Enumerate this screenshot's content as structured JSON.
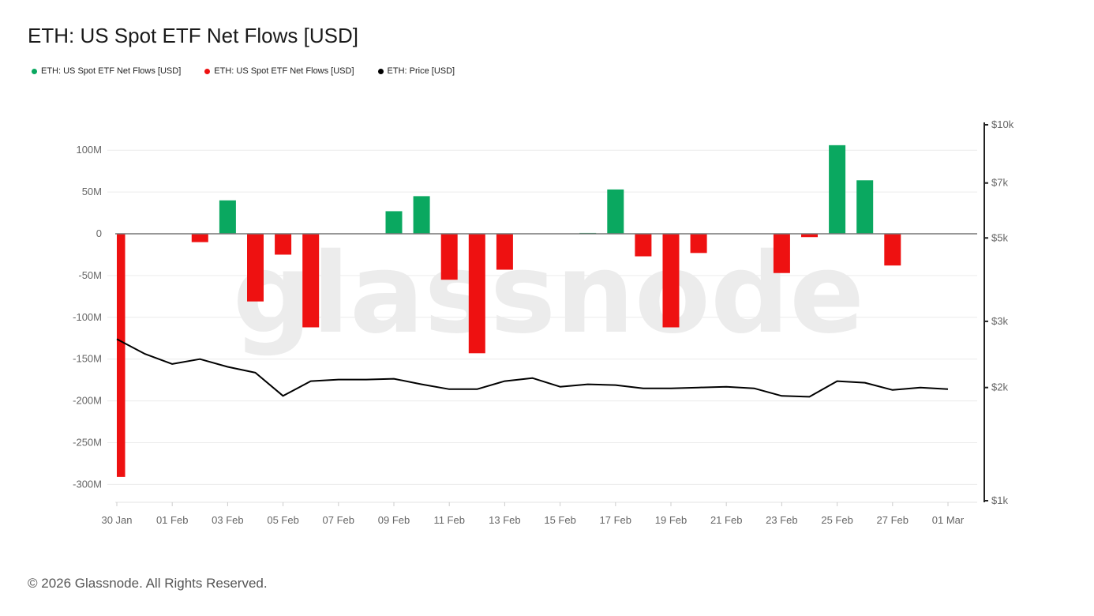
{
  "title": "ETH: US Spot ETF Net Flows [USD]",
  "legend": [
    {
      "label": "ETH: US Spot ETF Net Flows [USD]",
      "color": "#0aa860"
    },
    {
      "label": "ETH: US Spot ETF Net Flows [USD]",
      "color": "#ee1111"
    },
    {
      "label": "ETH: Price [USD]",
      "color": "#000000"
    }
  ],
  "watermark": "glassnode",
  "footer": "© 2026 Glassnode. All Rights Reserved.",
  "chart_data": {
    "type": "bar",
    "x_tick_labels": [
      "30 Jan",
      "01 Feb",
      "03 Feb",
      "05 Feb",
      "07 Feb",
      "09 Feb",
      "11 Feb",
      "13 Feb",
      "15 Feb",
      "17 Feb",
      "19 Feb",
      "21 Feb",
      "23 Feb",
      "25 Feb",
      "27 Feb",
      "01 Mar"
    ],
    "y_left_tick_labels": [
      "100M",
      "50M",
      "0",
      "-50M",
      "-100M",
      "-150M",
      "-200M",
      "-250M",
      "-300M"
    ],
    "y_left_ticks": [
      100,
      50,
      0,
      -50,
      -100,
      -150,
      -200,
      -250,
      -300
    ],
    "y_right_tick_labels": [
      "$10k",
      "$7k",
      "$5k",
      "$3k",
      "$2k",
      "$1k"
    ],
    "y_right_ticks": [
      10000,
      7000,
      5000,
      3000,
      2000,
      1000
    ],
    "y_right_scale": "log",
    "grid": true,
    "positive_color": "#0aa860",
    "negative_color": "#ee1111",
    "price_color": "#000000",
    "x": [
      "30 Jan",
      "31 Jan",
      "01 Feb",
      "02 Feb",
      "03 Feb",
      "04 Feb",
      "05 Feb",
      "06 Feb",
      "07 Feb",
      "08 Feb",
      "09 Feb",
      "10 Feb",
      "11 Feb",
      "12 Feb",
      "13 Feb",
      "14 Feb",
      "15 Feb",
      "16 Feb",
      "17 Feb",
      "18 Feb",
      "19 Feb",
      "20 Feb",
      "21 Feb",
      "22 Feb",
      "23 Feb",
      "24 Feb",
      "25 Feb",
      "26 Feb",
      "27 Feb",
      "28 Feb",
      "01 Mar"
    ],
    "series": [
      {
        "name": "ETH: US Spot ETF Net Flows [USD]",
        "unit": "M",
        "values": [
          -291,
          0,
          0,
          -10,
          40,
          -81,
          -25,
          -112,
          0,
          0,
          27,
          45,
          -55,
          -143,
          -43,
          0,
          0,
          1,
          53,
          -27,
          -112,
          -23,
          0,
          0,
          -47,
          -4,
          106,
          64,
          -38,
          0,
          0
        ]
      },
      {
        "name": "ETH: Price [USD]",
        "values": [
          2690,
          2460,
          2310,
          2380,
          2270,
          2190,
          1900,
          2080,
          2100,
          2100,
          2110,
          2040,
          1980,
          1980,
          2080,
          2120,
          2010,
          2040,
          2030,
          1990,
          1990,
          2000,
          2010,
          1990,
          1900,
          1890,
          2080,
          2060,
          1970,
          2000,
          1980
        ]
      }
    ],
    "ylim": [
      -318,
      130
    ],
    "y_right_lim": [
      1000,
      10000
    ]
  }
}
